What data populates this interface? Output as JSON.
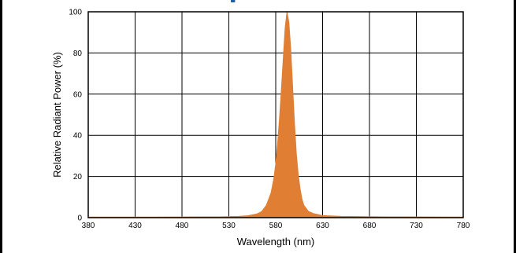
{
  "chart_data": {
    "type": "area",
    "title": "",
    "xlabel": "Wavelength (nm)",
    "ylabel": "Relative Radiant Power (%)",
    "xlim": [
      380,
      780
    ],
    "ylim": [
      0,
      100
    ],
    "x_ticks": [
      380,
      430,
      480,
      530,
      580,
      630,
      680,
      730,
      780
    ],
    "y_ticks": [
      0,
      20,
      40,
      60,
      80,
      100
    ],
    "grid": true,
    "fill_color": "#e07f33",
    "series": [
      {
        "x": [
          380,
          450,
          520,
          540,
          550,
          560,
          565,
          570,
          575,
          578,
          580,
          582,
          584,
          586,
          588,
          590,
          592,
          594,
          596,
          598,
          600,
          602,
          604,
          606,
          608,
          610,
          615,
          620,
          630,
          650,
          700,
          780
        ],
        "y": [
          0.3,
          0.3,
          0.4,
          0.6,
          0.9,
          1.8,
          3,
          6,
          12,
          19,
          26,
          36,
          48,
          62,
          77,
          92,
          100,
          95,
          82,
          64,
          46,
          31,
          21,
          14,
          9,
          6,
          3,
          2,
          1,
          0.6,
          0.4,
          0.3
        ]
      }
    ]
  }
}
